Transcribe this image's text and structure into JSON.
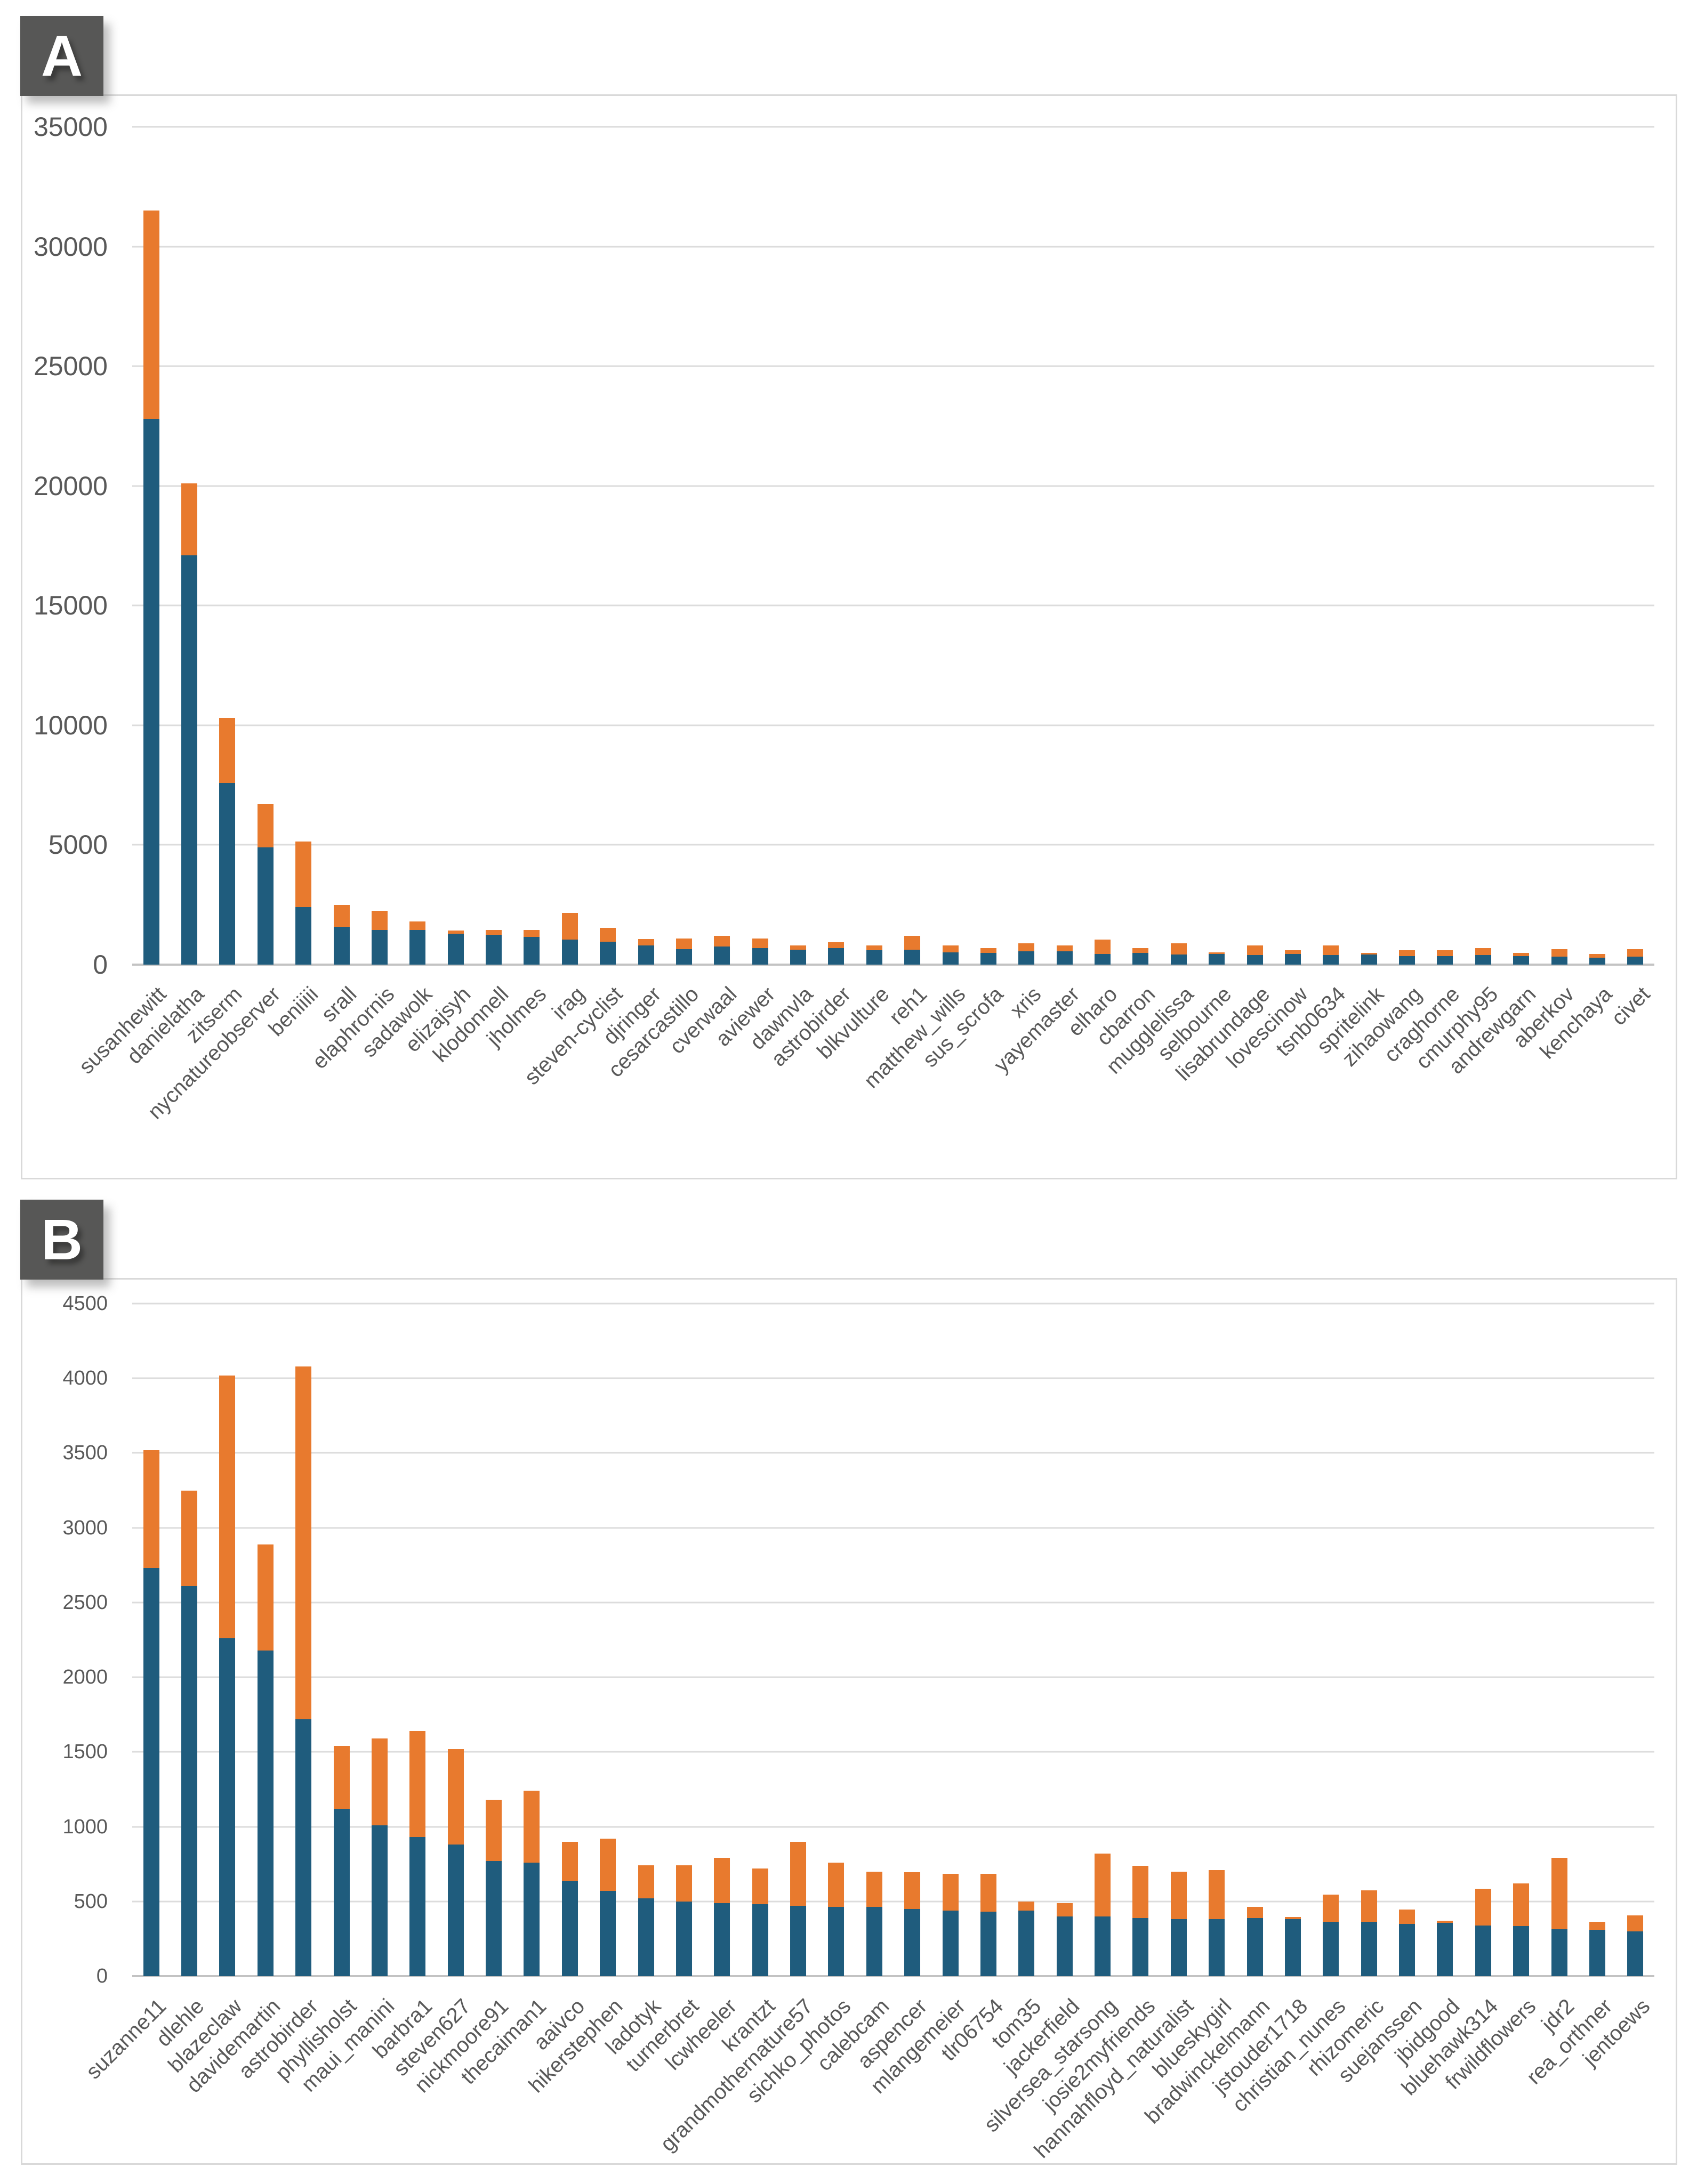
{
  "page": {
    "background": "#ffffff"
  },
  "chart_data": [
    {
      "panel_label": "A",
      "type": "bar",
      "stacked": true,
      "title": "",
      "xlabel": "",
      "ylabel": "",
      "legend": "none",
      "grid": true,
      "ylim": [
        0,
        35000
      ],
      "ytick_step": 5000,
      "yticks": [
        "0",
        "5000",
        "10000",
        "15000",
        "20000",
        "25000",
        "30000",
        "35000"
      ],
      "bar_colors": {
        "bottom": "#1f5c7d",
        "top": "#e87a2e"
      },
      "categories": [
        "susanhewitt",
        "danielatha",
        "zitserm",
        "nycnatureobserver",
        "beniiiii",
        "srall",
        "elaphrornis",
        "sadawolk",
        "elizajsyh",
        "klodonnell",
        "jholmes",
        "irag",
        "steven-cyclist",
        "djringer",
        "cesarcastillo",
        "cverwaal",
        "aviewer",
        "dawnvla",
        "astrobirder",
        "blkvulture",
        "reh1",
        "matthew_wills",
        "sus_scrofa",
        "xris",
        "yayemaster",
        "elharo",
        "cbarron",
        "mugglelissa",
        "selbourne",
        "lisabrundage",
        "lovescinow",
        "tsnb0634",
        "spritelink",
        "zihaowang",
        "craghorne",
        "cmurphy95",
        "andrewgarn",
        "aberkov",
        "kenchaya",
        "civet"
      ],
      "series": [
        {
          "color": "#1f5c7d",
          "values": [
            22800,
            17100,
            7600,
            4900,
            2400,
            1580,
            1450,
            1450,
            1300,
            1250,
            1150,
            1050,
            950,
            800,
            650,
            750,
            700,
            620,
            680,
            600,
            620,
            520,
            500,
            560,
            550,
            450,
            500,
            420,
            450,
            400,
            450,
            400,
            430,
            360,
            360,
            400,
            350,
            330,
            300,
            330
          ]
        },
        {
          "color": "#e87a2e",
          "values": [
            8700,
            3000,
            2700,
            1800,
            2750,
            910,
            800,
            350,
            130,
            200,
            300,
            1100,
            580,
            280,
            450,
            450,
            400,
            180,
            250,
            200,
            580,
            280,
            200,
            340,
            250,
            600,
            200,
            480,
            60,
            400,
            150,
            400,
            60,
            240,
            240,
            300,
            150,
            320,
            150,
            320
          ]
        }
      ]
    },
    {
      "panel_label": "B",
      "type": "bar",
      "stacked": true,
      "title": "",
      "xlabel": "",
      "ylabel": "",
      "legend": "none",
      "grid": true,
      "ylim": [
        0,
        4500
      ],
      "ytick_step": 500,
      "yticks": [
        "0",
        "500",
        "1000",
        "1500",
        "2000",
        "2500",
        "3000",
        "3500",
        "4000",
        "4500"
      ],
      "bar_colors": {
        "bottom": "#1f5c7d",
        "top": "#e87a2e"
      },
      "categories": [
        "suzanne11",
        "dlehle",
        "blazeclaw",
        "davidemartin",
        "astrobirder",
        "phyllisholst",
        "maui_manini",
        "barbra1",
        "steven627",
        "nickmoore91",
        "thecaiman1",
        "aaivco",
        "hikerstephen",
        "ladotyk",
        "turnerbret",
        "lcwheeler",
        "krantzt",
        "grandmothernature57",
        "sichko_photos",
        "calebcam",
        "aspencer",
        "mlangemeier",
        "tlr06754",
        "tom35",
        "jackerfield",
        "silversea_starsong",
        "josie2myfriends",
        "hannahfloyd_naturalist",
        "blueskygirl",
        "bradwinckelmann",
        "jstouder1718",
        "christian_nunes",
        "rhizomeric",
        "suejanssen",
        "jbidgood",
        "bluehawk314",
        "frwildflowers",
        "jdr2",
        "rea_orthner",
        "jentoews"
      ],
      "series": [
        {
          "color": "#1f5c7d",
          "values": [
            2730,
            2610,
            2260,
            2180,
            1720,
            1120,
            1010,
            930,
            880,
            770,
            760,
            640,
            570,
            520,
            500,
            490,
            480,
            470,
            465,
            465,
            450,
            440,
            430,
            440,
            400,
            400,
            390,
            380,
            380,
            390,
            380,
            365,
            365,
            350,
            355,
            340,
            335,
            315,
            310,
            300
          ]
        },
        {
          "color": "#e87a2e",
          "values": [
            790,
            640,
            1760,
            710,
            2360,
            420,
            580,
            710,
            640,
            410,
            480,
            260,
            350,
            220,
            240,
            300,
            240,
            430,
            295,
            235,
            245,
            245,
            255,
            60,
            90,
            420,
            350,
            320,
            330,
            75,
            15,
            180,
            210,
            95,
            15,
            245,
            285,
            475,
            55,
            105
          ]
        }
      ]
    }
  ]
}
